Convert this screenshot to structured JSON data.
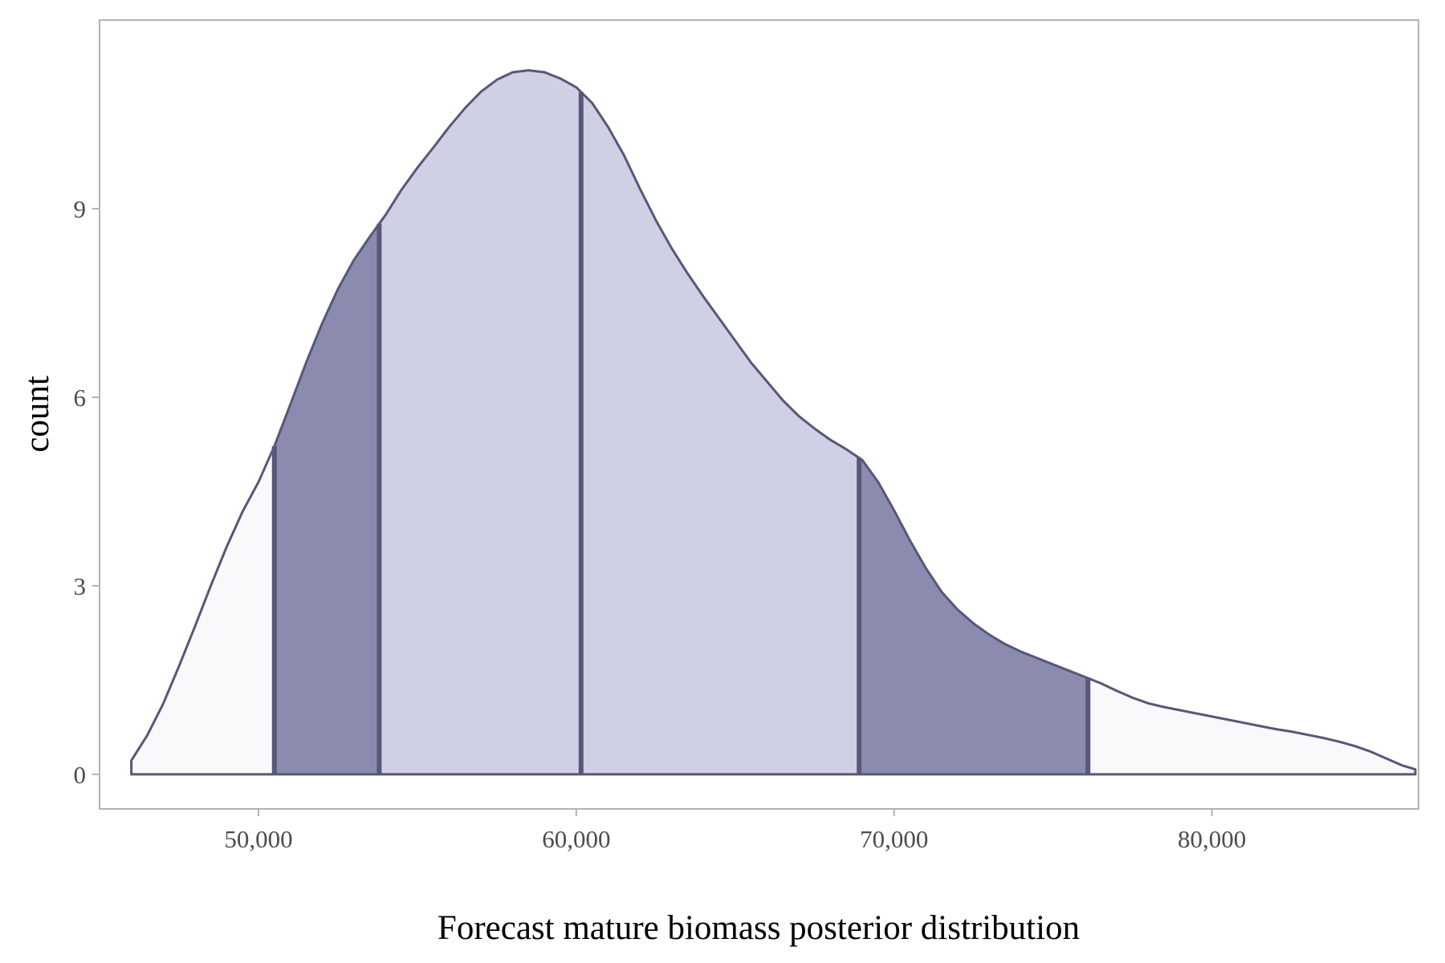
{
  "chart_data": {
    "type": "area",
    "title": "",
    "xlabel": "Forecast mature biomass posterior distribution",
    "ylabel": "count",
    "xlim": [
      45000,
      86500
    ],
    "ylim": [
      -0.55,
      12.0
    ],
    "x_ticks": [
      50000,
      60000,
      70000,
      80000
    ],
    "x_tick_labels": [
      "50,000",
      "60,000",
      "70,000",
      "80,000"
    ],
    "y_ticks": [
      0,
      3,
      6,
      9
    ],
    "y_tick_labels": [
      "0",
      "3",
      "6",
      "9"
    ],
    "grid": false,
    "density_curve": [
      [
        46000,
        0.22
      ],
      [
        46500,
        0.62
      ],
      [
        47000,
        1.12
      ],
      [
        47500,
        1.72
      ],
      [
        48000,
        2.35
      ],
      [
        48500,
        3.0
      ],
      [
        49000,
        3.62
      ],
      [
        49500,
        4.18
      ],
      [
        50000,
        4.65
      ],
      [
        50500,
        5.22
      ],
      [
        51000,
        5.88
      ],
      [
        51500,
        6.55
      ],
      [
        52000,
        7.17
      ],
      [
        52500,
        7.72
      ],
      [
        53000,
        8.18
      ],
      [
        53500,
        8.55
      ],
      [
        54000,
        8.9
      ],
      [
        54500,
        9.3
      ],
      [
        55000,
        9.65
      ],
      [
        55500,
        9.97
      ],
      [
        56000,
        10.3
      ],
      [
        56500,
        10.6
      ],
      [
        57000,
        10.86
      ],
      [
        57500,
        11.05
      ],
      [
        58000,
        11.17
      ],
      [
        58500,
        11.2
      ],
      [
        59000,
        11.17
      ],
      [
        59500,
        11.07
      ],
      [
        60000,
        10.93
      ],
      [
        60500,
        10.68
      ],
      [
        61000,
        10.3
      ],
      [
        61500,
        9.85
      ],
      [
        62000,
        9.32
      ],
      [
        62500,
        8.82
      ],
      [
        63000,
        8.37
      ],
      [
        63500,
        7.97
      ],
      [
        64000,
        7.6
      ],
      [
        64500,
        7.25
      ],
      [
        65000,
        6.9
      ],
      [
        65500,
        6.55
      ],
      [
        66000,
        6.25
      ],
      [
        66500,
        5.95
      ],
      [
        67000,
        5.7
      ],
      [
        67500,
        5.5
      ],
      [
        68000,
        5.32
      ],
      [
        68500,
        5.17
      ],
      [
        69000,
        5.0
      ],
      [
        69500,
        4.65
      ],
      [
        70000,
        4.2
      ],
      [
        70500,
        3.72
      ],
      [
        71000,
        3.28
      ],
      [
        71500,
        2.9
      ],
      [
        72000,
        2.62
      ],
      [
        72500,
        2.4
      ],
      [
        73000,
        2.22
      ],
      [
        73500,
        2.07
      ],
      [
        74000,
        1.95
      ],
      [
        74500,
        1.85
      ],
      [
        75000,
        1.75
      ],
      [
        75500,
        1.65
      ],
      [
        76000,
        1.55
      ],
      [
        76500,
        1.45
      ],
      [
        77000,
        1.33
      ],
      [
        77500,
        1.22
      ],
      [
        78000,
        1.13
      ],
      [
        78500,
        1.07
      ],
      [
        79000,
        1.02
      ],
      [
        79500,
        0.97
      ],
      [
        80000,
        0.92
      ],
      [
        80500,
        0.87
      ],
      [
        81000,
        0.82
      ],
      [
        81500,
        0.77
      ],
      [
        82000,
        0.72
      ],
      [
        82500,
        0.68
      ],
      [
        83000,
        0.63
      ],
      [
        83500,
        0.58
      ],
      [
        84000,
        0.52
      ],
      [
        84500,
        0.45
      ],
      [
        85000,
        0.36
      ],
      [
        85500,
        0.25
      ],
      [
        86000,
        0.14
      ],
      [
        86400,
        0.08
      ]
    ],
    "bands": [
      {
        "from": 46000,
        "to": 50500,
        "color": "#f9f9fc"
      },
      {
        "from": 50500,
        "to": 53800,
        "color": "#8b8bb0"
      },
      {
        "from": 53800,
        "to": 60150,
        "color": "#cfd0e3"
      },
      {
        "from": 60150,
        "to": 68900,
        "color": "#cfd0e3"
      },
      {
        "from": 68900,
        "to": 76100,
        "color": "#8b8bb0"
      },
      {
        "from": 76100,
        "to": 86400,
        "color": "#f9f9fc"
      }
    ],
    "quantile_lines": [
      50500,
      53800,
      60150,
      68900,
      76100
    ],
    "colors": {
      "outline": "#57577a",
      "tail": "#f9f9fc",
      "inner": "#cfd0e3",
      "mid": "#8b8bb0",
      "panel_border": "#b3b3b3",
      "tick_text": "#4d4d4d"
    }
  }
}
